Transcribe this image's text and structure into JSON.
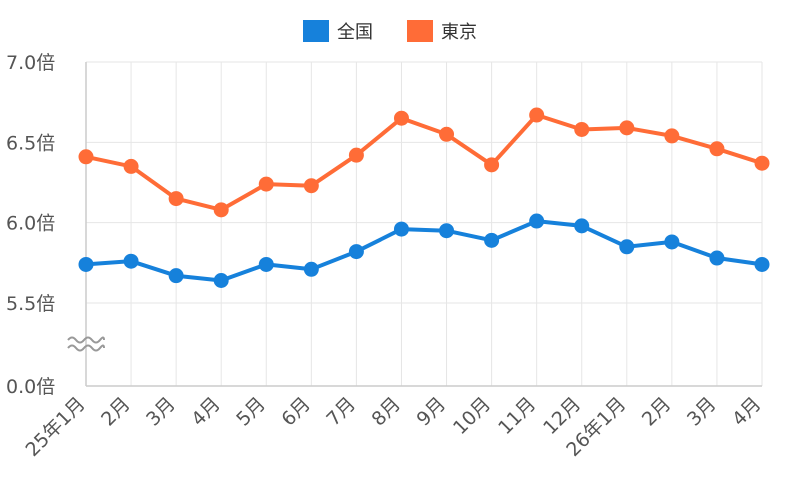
{
  "chart_data": {
    "type": "line",
    "categories": [
      "25年1月",
      "2月",
      "3月",
      "4月",
      "5月",
      "6月",
      "7月",
      "8月",
      "9月",
      "10月",
      "11月",
      "12月",
      "26年1月",
      "2月",
      "3月",
      "4月"
    ],
    "series": [
      {
        "name": "全国",
        "color": "#1681DB",
        "values": [
          5.74,
          5.76,
          5.67,
          5.64,
          5.74,
          5.71,
          5.82,
          5.96,
          5.95,
          5.89,
          6.01,
          5.98,
          5.85,
          5.88,
          5.78,
          5.74
        ]
      },
      {
        "name": "東京",
        "color": "#FF6C37",
        "values": [
          6.41,
          6.35,
          6.15,
          6.08,
          6.24,
          6.23,
          6.42,
          6.65,
          6.55,
          6.36,
          6.67,
          6.58,
          6.59,
          6.54,
          6.46,
          6.37
        ]
      }
    ],
    "ylim": [
      5.0,
      7.0
    ],
    "yticks": [
      "7.0倍",
      "6.5倍",
      "6.0倍",
      "5.5倍",
      "0.0倍"
    ],
    "axis_break": true,
    "grid": true,
    "legend_position": "top-center"
  }
}
